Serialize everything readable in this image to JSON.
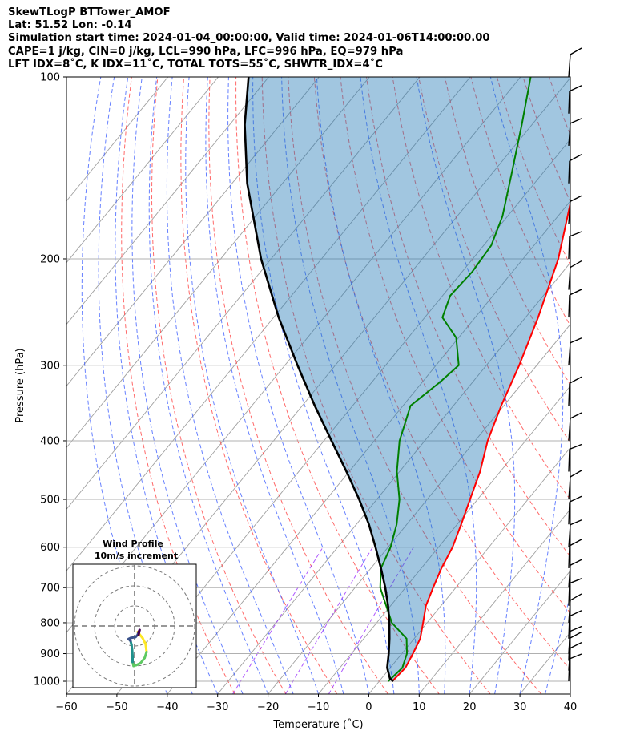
{
  "header": {
    "line1": "SkewTLogP BTTower_AMOF",
    "line2": "Lat: 51.52   Lon: -0.14",
    "line3": "Simulation start time: 2024-01-04_00:00:00, Valid time: 2024-01-06T14:00:00.00",
    "line4": "CAPE=1 j/kg, CIN=0 j/kg, LCL=990 hPa, LFC=996 hPa, EQ=979 hPa",
    "line5": "LFT IDX=8˚C, K IDX=11˚C, TOTAL TOTS=55˚C, SHWTR_IDX=4˚C"
  },
  "chart_data": {
    "type": "line",
    "title": "SkewTLogP BTTower_AMOF",
    "xlabel": "Temperature (˚C)",
    "ylabel": "Pressure (hPa)",
    "xlim": [
      -60,
      40
    ],
    "ylim": [
      1050,
      100
    ],
    "y_scale": "log",
    "grid": true,
    "x_ticks": [
      "−60",
      "−50",
      "−40",
      "−30",
      "−20",
      "−10",
      "0",
      "10",
      "20",
      "30",
      "40"
    ],
    "y_ticks": [
      "100",
      "200",
      "300",
      "400",
      "500",
      "600",
      "700",
      "800",
      "900",
      "1000"
    ],
    "series": [
      {
        "kind": "temperature",
        "color": "#ff0000",
        "points": [
          [
            2.6,
            1000
          ],
          [
            3.0,
            950
          ],
          [
            2.2,
            900
          ],
          [
            1.2,
            850
          ],
          [
            -0.8,
            800
          ],
          [
            -3.0,
            750
          ],
          [
            -4.5,
            700
          ],
          [
            -6.0,
            650
          ],
          [
            -7.2,
            600
          ],
          [
            -9.2,
            550
          ],
          [
            -11.5,
            500
          ],
          [
            -14.0,
            450
          ],
          [
            -17.5,
            400
          ],
          [
            -20.5,
            350
          ],
          [
            -23.5,
            300
          ],
          [
            -27.5,
            250
          ],
          [
            -33.0,
            200
          ],
          [
            -42.0,
            150
          ],
          [
            -49.5,
            120
          ],
          [
            -54.0,
            100
          ]
        ]
      },
      {
        "kind": "dewpoint",
        "color": "#008000",
        "points": [
          [
            1.8,
            1000
          ],
          [
            2.4,
            950
          ],
          [
            1.0,
            900
          ],
          [
            -1.5,
            850
          ],
          [
            -7.0,
            800
          ],
          [
            -15.0,
            700
          ],
          [
            -18.0,
            650
          ],
          [
            -19.5,
            600
          ],
          [
            -22.0,
            550
          ],
          [
            -25.5,
            500
          ],
          [
            -30.5,
            450
          ],
          [
            -35.0,
            400
          ],
          [
            -38.5,
            350
          ],
          [
            -36.5,
            320
          ],
          [
            -35.5,
            300
          ],
          [
            -40.5,
            270
          ],
          [
            -46.5,
            250
          ],
          [
            -48.5,
            230
          ],
          [
            -48.0,
            210
          ],
          [
            -48.5,
            190
          ],
          [
            -51.0,
            170
          ],
          [
            -56.0,
            145
          ],
          [
            -62.0,
            120
          ],
          [
            -68.0,
            100
          ]
        ]
      },
      {
        "kind": "parcel",
        "color": "#000000",
        "points": [
          [
            2.8,
            1000
          ],
          [
            1.7,
            990
          ],
          [
            -0.6,
            950
          ],
          [
            -2.6,
            900
          ],
          [
            -4.9,
            850
          ],
          [
            -7.5,
            800
          ],
          [
            -10.5,
            750
          ],
          [
            -14.0,
            700
          ],
          [
            -18.0,
            650
          ],
          [
            -22.5,
            600
          ],
          [
            -27.5,
            550
          ],
          [
            -33.5,
            500
          ],
          [
            -40.5,
            450
          ],
          [
            -48.5,
            400
          ],
          [
            -57.5,
            350
          ],
          [
            -67.5,
            300
          ],
          [
            -79.0,
            250
          ],
          [
            -92.0,
            200
          ],
          [
            -107.0,
            150
          ],
          [
            -117.0,
            120
          ],
          [
            -124.0,
            100
          ]
        ]
      }
    ],
    "wind_barbs": {
      "color": "#000000",
      "levels_hpa": [
        1000,
        960,
        925,
        900,
        850,
        800,
        750,
        700,
        650,
        600,
        550,
        500,
        450,
        400,
        350,
        300,
        250,
        225,
        200,
        175,
        150,
        130,
        115,
        100
      ]
    },
    "hodograph": {
      "title": "Wind Profile",
      "subtitle": "10m/s increment",
      "rings_ms": [
        10,
        20,
        30
      ],
      "colormap": [
        "#440154",
        "#3b528b",
        "#21918c",
        "#5ec962",
        "#fde725"
      ],
      "points": [
        [
          1.5,
          -3.0
        ],
        [
          4.0,
          -6.0
        ],
        [
          5.5,
          -9.0
        ],
        [
          6.0,
          -13.0
        ],
        [
          5.0,
          -16.0
        ],
        [
          3.0,
          -18.5
        ],
        [
          1.0,
          -19.5
        ],
        [
          -0.5,
          -20.0
        ],
        [
          -1.0,
          -18.0
        ],
        [
          -1.0,
          -15.0
        ],
        [
          -1.2,
          -12.0
        ],
        [
          -1.5,
          -9.5
        ],
        [
          -2.0,
          -7.5
        ],
        [
          -3.0,
          -6.5
        ],
        [
          -2.0,
          -6.0
        ],
        [
          0.5,
          -5.5
        ],
        [
          1.5,
          -4.5
        ],
        [
          2.0,
          -3.0
        ],
        [
          2.5,
          -2.0
        ],
        [
          2.0,
          -4.5
        ]
      ]
    }
  }
}
